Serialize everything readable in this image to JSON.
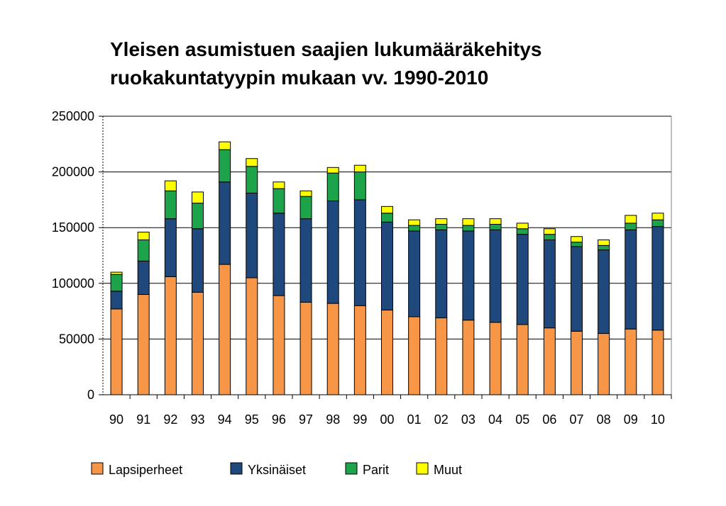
{
  "chart_data": {
    "type": "bar",
    "stacked": true,
    "title": [
      "Yleisen asumistuen saajien lukumääräkehitys",
      "ruokakuntatyypin mukaan vv. 1990-2010"
    ],
    "xlabel": "",
    "ylabel": "",
    "ylim": [
      0,
      250000
    ],
    "yticks": [
      0,
      50000,
      100000,
      150000,
      200000,
      250000
    ],
    "grid": true,
    "legend_position": "bottom",
    "categories": [
      "90",
      "91",
      "92",
      "93",
      "94",
      "95",
      "96",
      "97",
      "98",
      "99",
      "00",
      "01",
      "02",
      "03",
      "04",
      "05",
      "06",
      "07",
      "08",
      "09",
      "10"
    ],
    "series": [
      {
        "name": "Lapsiperheet",
        "color": "#F79646",
        "values": [
          77000,
          90000,
          106000,
          92000,
          117000,
          105000,
          89000,
          83000,
          82000,
          80000,
          76000,
          70000,
          69000,
          67000,
          65000,
          63000,
          60000,
          57000,
          55000,
          59000,
          58000
        ]
      },
      {
        "name": "Yksinäiset",
        "color": "#1F497D",
        "values": [
          16000,
          30000,
          52000,
          57000,
          74000,
          76000,
          74000,
          75000,
          92000,
          95000,
          79000,
          77000,
          79000,
          80000,
          83000,
          81000,
          79000,
          76000,
          75000,
          89000,
          93000
        ]
      },
      {
        "name": "Parit",
        "color": "#1DA44A",
        "values": [
          15000,
          19000,
          25000,
          23000,
          29000,
          24000,
          22000,
          20000,
          25000,
          25000,
          8000,
          5000,
          5000,
          5000,
          5000,
          5000,
          5000,
          4000,
          4000,
          6000,
          6000
        ]
      },
      {
        "name": "Muut",
        "color": "#FFFF00",
        "values": [
          2000,
          7000,
          9000,
          10000,
          7000,
          7000,
          6000,
          5000,
          5000,
          6000,
          6000,
          5000,
          5000,
          6000,
          5000,
          5000,
          5000,
          5000,
          5000,
          7000,
          6000
        ]
      }
    ]
  }
}
